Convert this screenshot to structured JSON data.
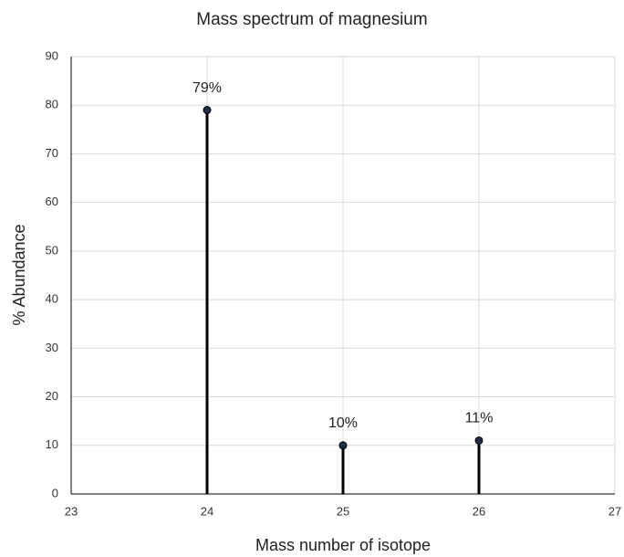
{
  "chart_data": {
    "type": "stem",
    "title": "Mass spectrum of magnesium",
    "xlabel": "Mass number of isotope",
    "ylabel": "% Abundance",
    "x": [
      24,
      25,
      26
    ],
    "values": [
      79,
      10,
      11
    ],
    "value_labels": [
      "79%",
      "10%",
      "11%"
    ],
    "color": "#1f2d4f",
    "stem_color": "#000000",
    "xlim": [
      23,
      27
    ],
    "xticks": [
      23,
      24,
      25,
      26,
      27
    ],
    "ylim": [
      0,
      90
    ],
    "yticks": [
      0,
      10,
      20,
      30,
      40,
      50,
      60,
      70,
      80,
      90
    ],
    "grid": true
  }
}
